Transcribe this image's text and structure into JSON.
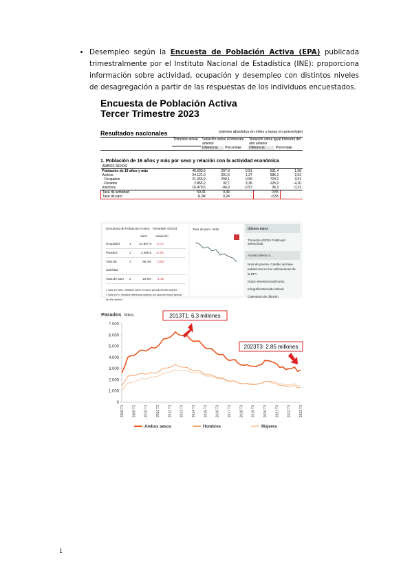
{
  "paragraph": {
    "before": "Desempleo según la ",
    "link": "Encuesta de Población Activa (EPA)",
    "after": " publicada trimestralmente por el Instituto Nacional de Estadística (INE): proporciona información sobre actividad, ocupación y desempleo con distintos niveles de desagregación a partir de las respuestas de los individuos encuestados."
  },
  "epa_table": {
    "title": "Encuesta de Población Activa",
    "subtitle": "Tercer Trimestre 2023",
    "section": "Resultados nacionales",
    "units": "(valores absolutos en miles y tasas en porcentaje)",
    "headers": [
      "Trimestre actual",
      "Variación sobre el trimestre anterior",
      "Variación sobre igual trimestre del año anterior"
    ],
    "subheaders": [
      "Diferencia",
      "Porcentaje",
      "Diferencia",
      "Porcentaje"
    ],
    "heading": "1. Población de 16 años y más por sexo y relación con la actividad económica",
    "group": "AMBOS SEXOS",
    "rows": [
      [
        "Población de 16 años y más",
        "40.600,5",
        "207,9",
        "0,51",
        "631,4",
        "1,58"
      ],
      [
        "Activos",
        "24.121,0",
        "301,6",
        "1,27",
        "585,1",
        "2,53"
      ],
      [
        "- Ocupados",
        "21.265,9",
        "209,1",
        "0,99",
        "720,1",
        "3,51"
      ],
      [
        "- Parados",
        "2.855,2",
        "92,7",
        "3,36",
        "-125,0",
        "-4,20"
      ],
      [
        "Inactivos",
        "16.479,5",
        "-94,0",
        "-0,57",
        "36,3",
        "0,22"
      ],
      [
        "Tasa de actividad",
        "59,41",
        "0,44",
        "-",
        "0,55",
        "-"
      ],
      [
        "Tasa de paro",
        "11,84",
        "0,24",
        "-",
        "-0,83",
        "-"
      ]
    ]
  },
  "widget": {
    "title": "Encuesta de Población Activa - Trimestre 4/2024",
    "columns": [
      "Valor",
      "Variación"
    ],
    "rows": [
      [
        "Ocupados",
        "1",
        "21.857,9",
        "2,1%"
      ],
      [
        "Parados",
        "1",
        "2.595,5",
        "-6,3%"
      ],
      [
        "Tasa de actividad",
        "2",
        "58,4%",
        "-0,54"
      ],
      [
        "Tasa de paro",
        "2",
        "10,6%",
        "-1,16"
      ]
    ],
    "notes": [
      "1 Valor en miles. Variación sobre el mismo periodo del año anterior",
      "2 Valor en %. Variación diferencia respecto a la tasa del mismo periodo del año anterior"
    ],
    "chart_title": "Tasa de paro. Valor",
    "side_title": "Últimos datos",
    "side_date": "Trimestre 4/2024 Publicado: 28/01/2025",
    "side_access": "Acceso directo a ...",
    "links": [
      "Nota de prensa. Cambio de base poblacional en las estimaciones de la EPA",
      "Datos desestacionalizados",
      "Infografía Mercado laboral",
      "Calendario de difusión"
    ]
  },
  "chart_data": {
    "type": "line",
    "title": "Parados",
    "unit": "Miles",
    "categories": [
      "2008 T3",
      null,
      null,
      null,
      "2009 T3",
      null,
      null,
      null,
      "2010 T3",
      null,
      null,
      null,
      "2011 T3",
      null,
      null,
      null,
      "2012 T3",
      null,
      null,
      null,
      "2013 T3",
      null,
      null,
      null,
      "2014 T3",
      null,
      null,
      null,
      "2015 T3",
      null,
      null,
      null,
      "2016 T3",
      null,
      null,
      null,
      "2017 T3",
      null,
      null,
      null,
      "2018 T3",
      null,
      null,
      null,
      "2019 T3",
      null,
      null,
      null,
      "2020 T3",
      null,
      null,
      null,
      "2021 T3",
      null,
      null,
      null,
      "2022 T3",
      null,
      null,
      null,
      "2023 T3"
    ],
    "series": [
      {
        "name": "Ambos sexos",
        "color": "#e8541c",
        "values": [
          2600,
          3200,
          4000,
          4150,
          4150,
          4350,
          4600,
          4650,
          4570,
          4700,
          4900,
          4830,
          4980,
          5270,
          5640,
          5690,
          5780,
          5970,
          6280,
          6050,
          5950,
          5940,
          5930,
          5620,
          5430,
          5460,
          5450,
          5150,
          4850,
          4780,
          4790,
          4570,
          4320,
          4240,
          4260,
          3910,
          3730,
          3770,
          3800,
          3490,
          3330,
          3300,
          3350,
          3230,
          3210,
          3190,
          3310,
          3370,
          3720,
          3720,
          3650,
          3540,
          3420,
          3100,
          3170,
          2920,
          2980,
          3020,
          3130,
          2760,
          2860
        ]
      },
      {
        "name": "Hombres",
        "color": "#f2a36b",
        "values": [
          1500,
          1850,
          2300,
          2400,
          2350,
          2450,
          2550,
          2550,
          2500,
          2550,
          2650,
          2570,
          2660,
          2850,
          3050,
          3050,
          3100,
          3200,
          3380,
          3200,
          3150,
          3120,
          3100,
          2930,
          2820,
          2830,
          2830,
          2650,
          2500,
          2460,
          2450,
          2330,
          2200,
          2150,
          2150,
          1980,
          1880,
          1900,
          1900,
          1740,
          1650,
          1650,
          1650,
          1600,
          1580,
          1580,
          1650,
          1700,
          1860,
          1850,
          1770,
          1700,
          1630,
          1490,
          1520,
          1410,
          1410,
          1440,
          1480,
          1300,
          1330
        ]
      },
      {
        "name": "Mujeres",
        "color": "#f7c9a4",
        "values": [
          1100,
          1350,
          1700,
          1750,
          1800,
          1900,
          2050,
          2100,
          2070,
          2150,
          2250,
          2260,
          2320,
          2420,
          2590,
          2640,
          2680,
          2770,
          2900,
          2850,
          2800,
          2820,
          2830,
          2690,
          2610,
          2630,
          2620,
          2500,
          2350,
          2320,
          2340,
          2240,
          2120,
          2090,
          2110,
          1930,
          1850,
          1870,
          1900,
          1750,
          1680,
          1650,
          1700,
          1630,
          1630,
          1610,
          1660,
          1670,
          1860,
          1870,
          1880,
          1840,
          1790,
          1610,
          1650,
          1510,
          1570,
          1580,
          1650,
          1460,
          1530
        ]
      }
    ],
    "ylim": [
      0,
      7000
    ],
    "yticks": [
      {
        "value": 0,
        "label": "0"
      },
      {
        "value": 1000,
        "label": "1.000"
      },
      {
        "value": 2000,
        "label": "2.000"
      },
      {
        "value": 3000,
        "label": "3.000"
      },
      {
        "value": 4000,
        "label": "4.000"
      },
      {
        "value": 5000,
        "label": "5.000"
      },
      {
        "value": 6000,
        "label": "6.000"
      },
      {
        "value": 7000,
        "label": "7.000"
      }
    ],
    "annotations": [
      "2013T1: 6,3 millones",
      "2023T3: 2,85 millones"
    ]
  },
  "page_number": "1"
}
